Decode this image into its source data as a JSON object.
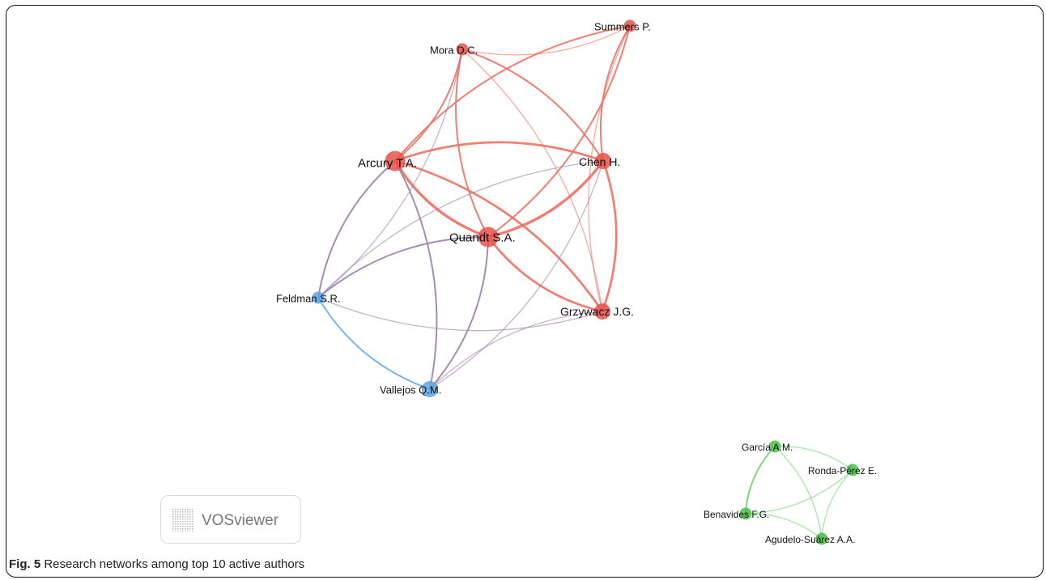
{
  "figure": {
    "caption_label": "Fig. 5",
    "caption_text": "Research networks among top 10 active authors"
  },
  "watermark": {
    "text": "VOSviewer",
    "icon": "vosviewer-logo-icon"
  },
  "colors": {
    "cluster_red_node": "#e8524a",
    "cluster_red_link": "#f07060",
    "cluster_blue_node": "#5aa4e6",
    "cluster_blue_link": "#6aaee6",
    "cluster_green_node": "#49c04a",
    "cluster_green_link": "#6cd46a",
    "mixed_link": "#9c7fa8"
  },
  "nodes": [
    {
      "id": "arcury",
      "label": "Arcury T.A.",
      "cluster": "red",
      "weight": 3
    },
    {
      "id": "quandt",
      "label": "Quandt S.A.",
      "cluster": "red",
      "weight": 3
    },
    {
      "id": "chen",
      "label": "Chen H.",
      "cluster": "red",
      "weight": 2
    },
    {
      "id": "mora",
      "label": "Mora D.C.",
      "cluster": "red",
      "weight": 1
    },
    {
      "id": "summers",
      "label": "Summers P.",
      "cluster": "red",
      "weight": 1
    },
    {
      "id": "grzywacz",
      "label": "Grzywacz J.G.",
      "cluster": "red",
      "weight": 2
    },
    {
      "id": "feldman",
      "label": "Feldman S.R.",
      "cluster": "blue",
      "weight": 1
    },
    {
      "id": "vallejos",
      "label": "Vallejos Q.M.",
      "cluster": "blue",
      "weight": 2
    },
    {
      "id": "garcia",
      "label": "García A.M.",
      "cluster": "green",
      "weight": 1
    },
    {
      "id": "ronda",
      "label": "Ronda-Pérez E.",
      "cluster": "green",
      "weight": 1
    },
    {
      "id": "benavides",
      "label": "Benavides F.G.",
      "cluster": "green",
      "weight": 1
    },
    {
      "id": "agudelo",
      "label": "Agudelo-Suárez A.A.",
      "cluster": "green",
      "weight": 1
    }
  ],
  "links": [
    {
      "source": "arcury",
      "target": "quandt",
      "strength": 4,
      "color": "red"
    },
    {
      "source": "arcury",
      "target": "chen",
      "strength": 3,
      "color": "red"
    },
    {
      "source": "quandt",
      "target": "chen",
      "strength": 4,
      "color": "red"
    },
    {
      "source": "arcury",
      "target": "grzywacz",
      "strength": 3,
      "color": "red"
    },
    {
      "source": "quandt",
      "target": "grzywacz",
      "strength": 3,
      "color": "red"
    },
    {
      "source": "chen",
      "target": "grzywacz",
      "strength": 3,
      "color": "red"
    },
    {
      "source": "arcury",
      "target": "mora",
      "strength": 2,
      "color": "red"
    },
    {
      "source": "arcury",
      "target": "summers",
      "strength": 2,
      "color": "red"
    },
    {
      "source": "mora",
      "target": "summers",
      "strength": 1,
      "color": "red"
    },
    {
      "source": "mora",
      "target": "chen",
      "strength": 2,
      "color": "red"
    },
    {
      "source": "mora",
      "target": "quandt",
      "strength": 2,
      "color": "red"
    },
    {
      "source": "mora",
      "target": "grzywacz",
      "strength": 1,
      "color": "red"
    },
    {
      "source": "summers",
      "target": "chen",
      "strength": 2,
      "color": "red"
    },
    {
      "source": "summers",
      "target": "quandt",
      "strength": 2,
      "color": "red"
    },
    {
      "source": "summers",
      "target": "grzywacz",
      "strength": 1,
      "color": "red"
    },
    {
      "source": "mora",
      "target": "feldman",
      "strength": 1,
      "color": "mixed"
    },
    {
      "source": "arcury",
      "target": "feldman",
      "strength": 2,
      "color": "mixed"
    },
    {
      "source": "arcury",
      "target": "vallejos",
      "strength": 2,
      "color": "mixed"
    },
    {
      "source": "quandt",
      "target": "feldman",
      "strength": 2,
      "color": "mixed"
    },
    {
      "source": "quandt",
      "target": "vallejos",
      "strength": 2,
      "color": "mixed"
    },
    {
      "source": "chen",
      "target": "feldman",
      "strength": 1,
      "color": "mixed"
    },
    {
      "source": "chen",
      "target": "vallejos",
      "strength": 1,
      "color": "mixed"
    },
    {
      "source": "feldman",
      "target": "grzywacz",
      "strength": 1,
      "color": "mixed"
    },
    {
      "source": "vallejos",
      "target": "grzywacz",
      "strength": 1,
      "color": "mixed"
    },
    {
      "source": "feldman",
      "target": "vallejos",
      "strength": 2,
      "color": "blue"
    },
    {
      "source": "garcia",
      "target": "ronda",
      "strength": 1,
      "color": "green"
    },
    {
      "source": "garcia",
      "target": "benavides",
      "strength": 2,
      "color": "green"
    },
    {
      "source": "garcia",
      "target": "agudelo",
      "strength": 1,
      "color": "green"
    },
    {
      "source": "benavides",
      "target": "ronda",
      "strength": 1,
      "color": "green"
    },
    {
      "source": "benavides",
      "target": "agudelo",
      "strength": 1,
      "color": "green"
    },
    {
      "source": "ronda",
      "target": "agudelo",
      "strength": 1,
      "color": "green"
    }
  ]
}
